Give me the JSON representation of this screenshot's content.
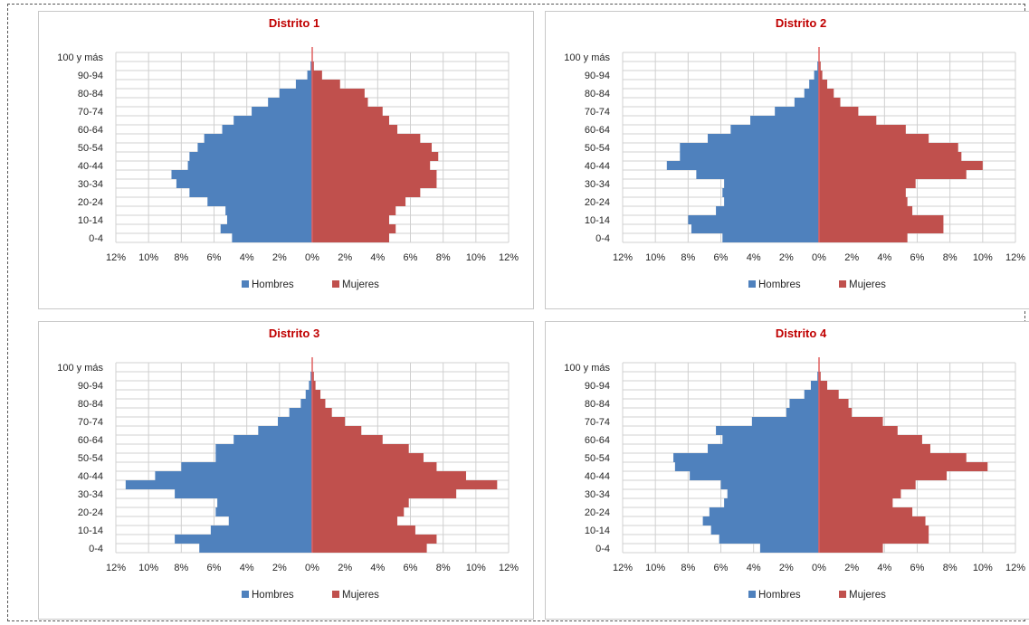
{
  "legend": {
    "male": "Hombres",
    "female": "Mujeres"
  },
  "colors": {
    "male": "#4f81bd",
    "female": "#c0504d",
    "title": "#c00000",
    "grid": "#d0d0d0",
    "axis": "#e06060"
  },
  "chart_data": [
    {
      "type": "bar",
      "title": "Distrito 1",
      "categories": [
        "0-4",
        "5-9",
        "10-14",
        "15-19",
        "20-24",
        "25-29",
        "30-34",
        "35-39",
        "40-44",
        "45-49",
        "50-54",
        "55-59",
        "60-64",
        "65-69",
        "70-74",
        "75-79",
        "80-84",
        "85-89",
        "90-94",
        "95-99",
        "100 y más"
      ],
      "category_labels": [
        "0-4",
        "10-14",
        "20-24",
        "30-34",
        "40-44",
        "50-54",
        "60-64",
        "70-74",
        "80-84",
        "90-94",
        "100 y más"
      ],
      "series": [
        {
          "name": "Hombres",
          "values": [
            4.9,
            5.6,
            5.2,
            5.3,
            6.4,
            7.5,
            8.3,
            8.6,
            7.6,
            7.5,
            7.0,
            6.6,
            5.5,
            4.8,
            3.7,
            2.7,
            2.0,
            1.0,
            0.3,
            0.1,
            0.0
          ]
        },
        {
          "name": "Mujeres",
          "values": [
            4.7,
            5.1,
            4.7,
            5.1,
            5.7,
            6.6,
            7.6,
            7.6,
            7.2,
            7.7,
            7.3,
            6.6,
            5.2,
            4.7,
            4.3,
            3.4,
            3.2,
            1.7,
            0.6,
            0.1,
            0.0
          ]
        }
      ],
      "x_ticks": [
        "12%",
        "10%",
        "8%",
        "6%",
        "4%",
        "2%",
        "0%",
        "2%",
        "4%",
        "6%",
        "8%",
        "10%",
        "12%"
      ],
      "xlim": [
        -12,
        12
      ]
    },
    {
      "type": "bar",
      "title": "Distrito 2",
      "categories": [
        "0-4",
        "5-9",
        "10-14",
        "15-19",
        "20-24",
        "25-29",
        "30-34",
        "35-39",
        "40-44",
        "45-49",
        "50-54",
        "55-59",
        "60-64",
        "65-69",
        "70-74",
        "75-79",
        "80-84",
        "85-89",
        "90-94",
        "95-99",
        "100 y más"
      ],
      "category_labels": [
        "0-4",
        "10-14",
        "20-24",
        "30-34",
        "40-44",
        "50-54",
        "60-64",
        "70-74",
        "80-84",
        "90-94",
        "100 y más"
      ],
      "series": [
        {
          "name": "Hombres",
          "values": [
            5.9,
            7.8,
            8.0,
            6.3,
            5.8,
            5.9,
            5.8,
            7.5,
            9.3,
            8.5,
            8.5,
            6.8,
            5.4,
            4.2,
            2.7,
            1.5,
            0.9,
            0.6,
            0.3,
            0.1,
            0.0
          ]
        },
        {
          "name": "Mujeres",
          "values": [
            5.4,
            7.6,
            7.6,
            5.7,
            5.4,
            5.3,
            5.9,
            9.0,
            10.0,
            8.7,
            8.5,
            6.7,
            5.3,
            3.5,
            2.4,
            1.3,
            0.9,
            0.5,
            0.2,
            0.1,
            0.0
          ]
        }
      ],
      "x_ticks": [
        "12%",
        "10%",
        "8%",
        "6%",
        "4%",
        "2%",
        "0%",
        "2%",
        "4%",
        "6%",
        "8%",
        "10%",
        "12%"
      ],
      "xlim": [
        -12,
        12
      ]
    },
    {
      "type": "bar",
      "title": "Distrito 3",
      "categories": [
        "0-4",
        "5-9",
        "10-14",
        "15-19",
        "20-24",
        "25-29",
        "30-34",
        "35-39",
        "40-44",
        "45-49",
        "50-54",
        "55-59",
        "60-64",
        "65-69",
        "70-74",
        "75-79",
        "80-84",
        "85-89",
        "90-94",
        "95-99",
        "100 y más"
      ],
      "category_labels": [
        "0-4",
        "10-14",
        "20-24",
        "30-34",
        "40-44",
        "50-54",
        "60-64",
        "70-74",
        "80-84",
        "90-94",
        "100 y más"
      ],
      "series": [
        {
          "name": "Hombres",
          "values": [
            6.9,
            8.4,
            6.2,
            5.1,
            5.9,
            5.8,
            8.4,
            11.4,
            9.6,
            8.0,
            5.9,
            5.9,
            4.8,
            3.3,
            2.1,
            1.4,
            0.7,
            0.4,
            0.2,
            0.1,
            0.0
          ]
        },
        {
          "name": "Mujeres",
          "values": [
            7.0,
            7.6,
            6.3,
            5.2,
            5.6,
            5.9,
            8.8,
            11.3,
            9.4,
            7.6,
            6.8,
            5.9,
            4.3,
            3.0,
            2.0,
            1.2,
            0.8,
            0.5,
            0.2,
            0.1,
            0.0
          ]
        }
      ],
      "x_ticks": [
        "12%",
        "10%",
        "8%",
        "6%",
        "4%",
        "2%",
        "0%",
        "2%",
        "4%",
        "6%",
        "8%",
        "10%",
        "12%"
      ],
      "xlim": [
        -12,
        12
      ]
    },
    {
      "type": "bar",
      "title": "Distrito 4",
      "categories": [
        "0-4",
        "5-9",
        "10-14",
        "15-19",
        "20-24",
        "25-29",
        "30-34",
        "35-39",
        "40-44",
        "45-49",
        "50-54",
        "55-59",
        "60-64",
        "65-69",
        "70-74",
        "75-79",
        "80-84",
        "85-89",
        "90-94",
        "95-99",
        "100 y más"
      ],
      "category_labels": [
        "0-4",
        "10-14",
        "20-24",
        "30-34",
        "40-44",
        "50-54",
        "60-64",
        "70-74",
        "80-84",
        "90-94",
        "100 y más"
      ],
      "series": [
        {
          "name": "Hombres",
          "values": [
            3.6,
            6.1,
            6.6,
            7.1,
            6.7,
            5.8,
            5.6,
            6.0,
            7.9,
            8.8,
            8.9,
            6.8,
            5.9,
            6.3,
            4.1,
            2.0,
            1.8,
            0.9,
            0.5,
            0.1,
            0.0
          ]
        },
        {
          "name": "Mujeres",
          "values": [
            3.9,
            6.7,
            6.7,
            6.5,
            5.7,
            4.5,
            5.0,
            5.9,
            7.8,
            10.3,
            9.0,
            6.8,
            6.3,
            4.8,
            3.9,
            2.0,
            1.8,
            1.2,
            0.5,
            0.1,
            0.0
          ]
        }
      ],
      "x_ticks": [
        "12%",
        "10%",
        "8%",
        "6%",
        "4%",
        "2%",
        "0%",
        "2%",
        "4%",
        "6%",
        "8%",
        "10%",
        "12%"
      ],
      "xlim": [
        -12,
        12
      ]
    }
  ]
}
